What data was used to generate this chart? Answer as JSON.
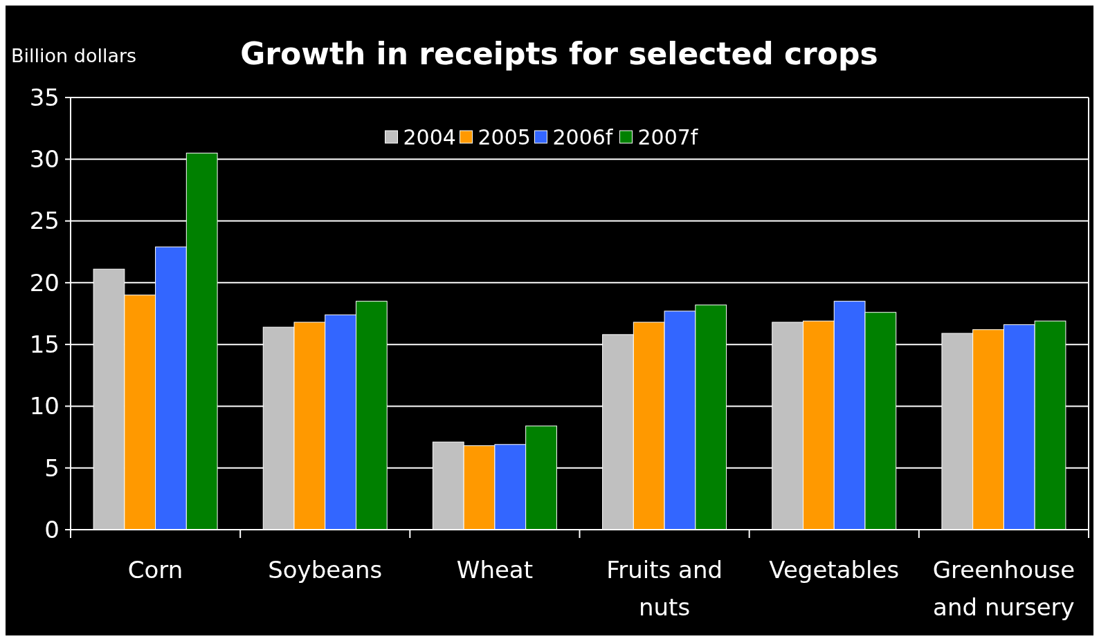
{
  "chart_data": {
    "type": "bar",
    "title": "Growth in receipts for selected crops",
    "ylabel": "Billion dollars",
    "categories": [
      "Corn",
      "Soybeans",
      "Wheat",
      "Fruits and nuts",
      "Vegetables",
      "Greenhouse and nursery"
    ],
    "series": [
      {
        "name": "2004",
        "color": "#c0c0c0",
        "values": [
          21.1,
          16.4,
          7.1,
          15.8,
          16.8,
          15.9
        ]
      },
      {
        "name": "2005",
        "color": "#ff9900",
        "values": [
          19.0,
          16.8,
          6.8,
          16.8,
          16.9,
          16.2
        ]
      },
      {
        "name": "2006f",
        "color": "#3366ff",
        "values": [
          22.9,
          17.4,
          6.9,
          17.7,
          18.5,
          16.6
        ]
      },
      {
        "name": "2007f",
        "color": "#008000",
        "values": [
          30.5,
          18.5,
          8.4,
          18.2,
          17.6,
          16.9
        ]
      }
    ],
    "ylim": [
      0,
      35
    ],
    "yticks": [
      0,
      5,
      10,
      15,
      20,
      25,
      30,
      35
    ],
    "grid": "y",
    "legend": "top"
  }
}
